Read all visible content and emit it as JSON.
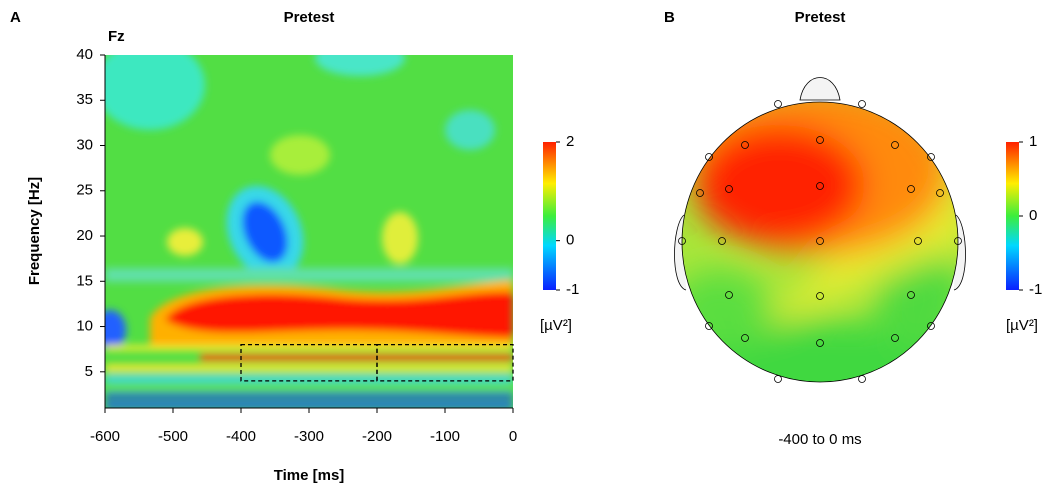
{
  "chart_data": [
    {
      "type": "heatmap",
      "panel": "A",
      "title": "Pretest",
      "channel": "Fz",
      "x_label": "Time [ms]",
      "y_label": "Frequency [Hz]",
      "xlim": [
        -600,
        0
      ],
      "xticks": [
        -600,
        -500,
        -400,
        -300,
        -200,
        -100,
        0
      ],
      "ylim": [
        1,
        40
      ],
      "yticks": [
        5,
        10,
        15,
        20,
        25,
        30,
        35,
        40
      ],
      "clim": [
        -1,
        2
      ],
      "cticks": [
        -1,
        0,
        2
      ],
      "colorbar_label": "[µV²]",
      "regions": [
        {
          "x": [
            -400,
            -200
          ],
          "y": [
            4,
            8
          ]
        },
        {
          "x": [
            -200,
            0
          ],
          "y": [
            4,
            8
          ]
        }
      ]
    },
    {
      "type": "topomap",
      "panel": "B",
      "title": "Pretest",
      "caption": "-400 to 0 ms",
      "clim": [
        -1,
        1
      ],
      "cticks": [
        -1,
        0,
        1
      ],
      "colorbar_label": "[µV²]"
    }
  ]
}
